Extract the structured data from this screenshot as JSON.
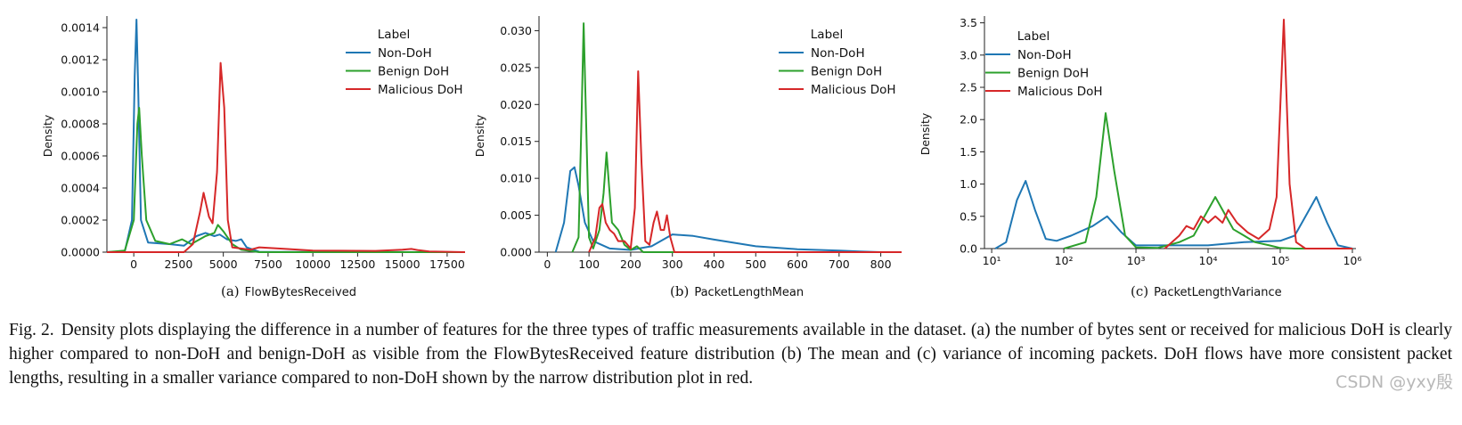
{
  "figure": {
    "caption_lead": "Fig. 2.",
    "caption_text": "Density plots displaying the difference in a number of features for the three types of traffic measurements available in the dataset. (a) the number of bytes sent or received for malicious DoH is clearly higher compared to non-DoH and benign-DoH as visible from the FlowBytesReceived feature distribution (b) The mean and (c) variance of incoming packets. DoH flows have more consistent packet lengths, resulting in a smaller variance compared to non-DoH shown by the narrow distribution plot in red.",
    "watermark": "CSDN @yxy殷"
  },
  "colors": {
    "non_doh": "#1f77b4",
    "benign_doh": "#2ca02c",
    "malicious_doh": "#d62728"
  },
  "chart_data": [
    {
      "type": "line",
      "panel": "(a)",
      "xlabel": "FlowBytesReceived",
      "ylabel": "Density",
      "xscale": "linear",
      "xlim": [
        -1500,
        18500
      ],
      "ylim": [
        0,
        0.00145
      ],
      "xticks": [
        0,
        2500,
        5000,
        7500,
        10000,
        12500,
        15000,
        17500
      ],
      "xtick_labels": [
        "0",
        "2500",
        "5000",
        "7500",
        "10000",
        "12500",
        "15000",
        "17500"
      ],
      "yticks": [
        0,
        0.0002,
        0.0004,
        0.0006,
        0.0008,
        0.001,
        0.0012,
        0.0014
      ],
      "ytick_labels": [
        "0.0000",
        "0.0002",
        "0.0004",
        "0.0006",
        "0.0008",
        "0.0010",
        "0.0012",
        "0.0014"
      ],
      "legend": {
        "title": "Label",
        "entries": [
          "Non-DoH",
          "Benign DoH",
          "Malicious DoH"
        ],
        "placement": "top-right"
      },
      "series": [
        {
          "name": "Non-DoH",
          "color_key": "non_doh",
          "points": [
            [
              -1500,
              0
            ],
            [
              -500,
              5e-06
            ],
            [
              -100,
              0.0002
            ],
            [
              50,
              0.0011
            ],
            [
              150,
              0.00145
            ],
            [
              250,
              0.001
            ],
            [
              400,
              0.0002
            ],
            [
              800,
              6e-05
            ],
            [
              2000,
              5e-05
            ],
            [
              2800,
              4e-05
            ],
            [
              3500,
              0.0001
            ],
            [
              4000,
              0.00012
            ],
            [
              4500,
              0.0001
            ],
            [
              4800,
              0.00011
            ],
            [
              5200,
              8e-05
            ],
            [
              5700,
              7e-05
            ],
            [
              6000,
              8e-05
            ],
            [
              6300,
              3e-05
            ],
            [
              7000,
              2e-06
            ],
            [
              18500,
              0
            ]
          ]
        },
        {
          "name": "Benign DoH",
          "color_key": "benign_doh",
          "points": [
            [
              -1500,
              0
            ],
            [
              -500,
              1e-05
            ],
            [
              0,
              0.0002
            ],
            [
              200,
              0.0008
            ],
            [
              300,
              0.0009
            ],
            [
              450,
              0.0006
            ],
            [
              700,
              0.0002
            ],
            [
              1200,
              7e-05
            ],
            [
              2000,
              5e-05
            ],
            [
              2700,
              8e-05
            ],
            [
              3200,
              5e-05
            ],
            [
              4000,
              0.0001
            ],
            [
              4500,
              0.00012
            ],
            [
              4700,
              0.00017
            ],
            [
              5000,
              0.00013
            ],
            [
              5500,
              5e-05
            ],
            [
              6000,
              1.5e-05
            ],
            [
              7000,
              0
            ],
            [
              18500,
              0
            ]
          ]
        },
        {
          "name": "Malicious DoH",
          "color_key": "malicious_doh",
          "points": [
            [
              -1500,
              0
            ],
            [
              2800,
              0
            ],
            [
              3300,
              5e-05
            ],
            [
              3700,
              0.00025
            ],
            [
              3900,
              0.00037
            ],
            [
              4200,
              0.00022
            ],
            [
              4400,
              0.00018
            ],
            [
              4650,
              0.0005
            ],
            [
              4850,
              0.00118
            ],
            [
              5050,
              0.0009
            ],
            [
              5250,
              0.0002
            ],
            [
              5500,
              3e-05
            ],
            [
              6500,
              1.5e-05
            ],
            [
              7000,
              3e-05
            ],
            [
              8500,
              2e-05
            ],
            [
              10000,
              1e-05
            ],
            [
              13500,
              8e-06
            ],
            [
              15000,
              1.5e-05
            ],
            [
              15500,
              2e-05
            ],
            [
              15900,
              1.2e-05
            ],
            [
              16500,
              4e-06
            ],
            [
              18500,
              0
            ]
          ]
        }
      ]
    },
    {
      "type": "line",
      "panel": "(b)",
      "xlabel": "PacketLengthMean",
      "ylabel": "Density",
      "xscale": "linear",
      "xlim": [
        -20,
        850
      ],
      "ylim": [
        0,
        0.0315
      ],
      "xticks": [
        0,
        100,
        200,
        300,
        400,
        500,
        600,
        700,
        800
      ],
      "xtick_labels": [
        "0",
        "100",
        "200",
        "300",
        "400",
        "500",
        "600",
        "700",
        "800"
      ],
      "yticks": [
        0,
        0.005,
        0.01,
        0.015,
        0.02,
        0.025,
        0.03
      ],
      "ytick_labels": [
        "0.000",
        "0.005",
        "0.010",
        "0.015",
        "0.020",
        "0.025",
        "0.030"
      ],
      "legend": {
        "title": "Label",
        "entries": [
          "Non-DoH",
          "Benign DoH",
          "Malicious DoH"
        ],
        "placement": "top-right"
      },
      "series": [
        {
          "name": "Non-DoH",
          "color_key": "non_doh",
          "points": [
            [
              20,
              0
            ],
            [
              40,
              0.004
            ],
            [
              55,
              0.011
            ],
            [
              65,
              0.0115
            ],
            [
              75,
              0.009
            ],
            [
              90,
              0.004
            ],
            [
              110,
              0.0015
            ],
            [
              150,
              0.0005
            ],
            [
              200,
              0.0003
            ],
            [
              250,
              0.0008
            ],
            [
              300,
              0.0024
            ],
            [
              350,
              0.0022
            ],
            [
              400,
              0.0017
            ],
            [
              500,
              0.0008
            ],
            [
              600,
              0.0004
            ],
            [
              700,
              0.0002
            ],
            [
              750,
              0.0001
            ],
            [
              800,
              0
            ]
          ]
        },
        {
          "name": "Benign DoH",
          "color_key": "benign_doh",
          "points": [
            [
              60,
              0
            ],
            [
              75,
              0.002
            ],
            [
              82,
              0.018
            ],
            [
              87,
              0.031
            ],
            [
              92,
              0.02
            ],
            [
              100,
              0.002
            ],
            [
              110,
              0.0005
            ],
            [
              125,
              0.003
            ],
            [
              135,
              0.008
            ],
            [
              142,
              0.0135
            ],
            [
              148,
              0.009
            ],
            [
              155,
              0.004
            ],
            [
              170,
              0.003
            ],
            [
              185,
              0.001
            ],
            [
              200,
              0.0003
            ],
            [
              215,
              0.0008
            ],
            [
              230,
              0
            ],
            [
              850,
              0
            ]
          ]
        },
        {
          "name": "Malicious DoH",
          "color_key": "malicious_doh",
          "points": [
            [
              100,
              0
            ],
            [
              115,
              0.002
            ],
            [
              125,
              0.006
            ],
            [
              132,
              0.0065
            ],
            [
              140,
              0.004
            ],
            [
              150,
              0.003
            ],
            [
              160,
              0.0025
            ],
            [
              170,
              0.0015
            ],
            [
              185,
              0.0015
            ],
            [
              200,
              0.0005
            ],
            [
              210,
              0.006
            ],
            [
              218,
              0.0245
            ],
            [
              226,
              0.012
            ],
            [
              235,
              0.0015
            ],
            [
              245,
              0.001
            ],
            [
              255,
              0.004
            ],
            [
              263,
              0.0055
            ],
            [
              272,
              0.003
            ],
            [
              280,
              0.003
            ],
            [
              287,
              0.005
            ],
            [
              295,
              0.002
            ],
            [
              305,
              0
            ],
            [
              850,
              0
            ]
          ]
        }
      ]
    },
    {
      "type": "line",
      "panel": "(c)",
      "xlabel": "PacketLengthVariance",
      "ylabel": "Density",
      "xscale": "log10",
      "xlim": [
        0.9,
        6.05
      ],
      "ylim": [
        0,
        3.55
      ],
      "xticks": [
        1,
        2,
        3,
        4,
        5,
        6
      ],
      "xtick_labels": [
        "10¹",
        "10²",
        "10³",
        "10⁴",
        "10⁵",
        "10⁶"
      ],
      "yticks": [
        0,
        0.5,
        1,
        1.5,
        2,
        2.5,
        3,
        3.5
      ],
      "ytick_labels": [
        "0.0",
        "0.5",
        "1.0",
        "1.5",
        "2.0",
        "2.5",
        "3.0",
        "3.5"
      ],
      "legend": {
        "title": "Label",
        "entries": [
          "Non-DoH",
          "Benign DoH",
          "Malicious DoH"
        ],
        "placement": "top-left"
      },
      "series": [
        {
          "name": "Non-DoH",
          "color_key": "non_doh",
          "points": [
            [
              1.05,
              0
            ],
            [
              1.2,
              0.1
            ],
            [
              1.35,
              0.75
            ],
            [
              1.47,
              1.05
            ],
            [
              1.6,
              0.6
            ],
            [
              1.75,
              0.15
            ],
            [
              1.9,
              0.12
            ],
            [
              2.1,
              0.2
            ],
            [
              2.4,
              0.35
            ],
            [
              2.6,
              0.5
            ],
            [
              2.8,
              0.25
            ],
            [
              3.0,
              0.05
            ],
            [
              3.5,
              0.05
            ],
            [
              4.0,
              0.05
            ],
            [
              4.5,
              0.1
            ],
            [
              5.0,
              0.12
            ],
            [
              5.2,
              0.2
            ],
            [
              5.4,
              0.6
            ],
            [
              5.5,
              0.8
            ],
            [
              5.65,
              0.4
            ],
            [
              5.8,
              0.05
            ],
            [
              6.0,
              0
            ]
          ]
        },
        {
          "name": "Benign DoH",
          "color_key": "benign_doh",
          "points": [
            [
              2.0,
              0
            ],
            [
              2.3,
              0.1
            ],
            [
              2.45,
              0.8
            ],
            [
              2.58,
              2.1
            ],
            [
              2.7,
              1.2
            ],
            [
              2.85,
              0.2
            ],
            [
              3.0,
              0.02
            ],
            [
              3.3,
              0.01
            ],
            [
              3.6,
              0.1
            ],
            [
              3.8,
              0.2
            ],
            [
              3.95,
              0.5
            ],
            [
              4.1,
              0.8
            ],
            [
              4.2,
              0.6
            ],
            [
              4.35,
              0.3
            ],
            [
              4.5,
              0.2
            ],
            [
              4.65,
              0.1
            ],
            [
              4.85,
              0.05
            ],
            [
              5.0,
              0.01
            ],
            [
              5.2,
              0
            ],
            [
              6.0,
              0
            ]
          ]
        },
        {
          "name": "Malicious DoH",
          "color_key": "malicious_doh",
          "points": [
            [
              3.4,
              0
            ],
            [
              3.6,
              0.2
            ],
            [
              3.7,
              0.35
            ],
            [
              3.8,
              0.3
            ],
            [
              3.9,
              0.5
            ],
            [
              4.0,
              0.4
            ],
            [
              4.1,
              0.5
            ],
            [
              4.2,
              0.4
            ],
            [
              4.28,
              0.6
            ],
            [
              4.4,
              0.4
            ],
            [
              4.55,
              0.25
            ],
            [
              4.7,
              0.15
            ],
            [
              4.85,
              0.3
            ],
            [
              4.95,
              0.8
            ],
            [
              5.05,
              3.55
            ],
            [
              5.13,
              1.0
            ],
            [
              5.22,
              0.1
            ],
            [
              5.35,
              0
            ],
            [
              6.0,
              0
            ]
          ]
        }
      ]
    }
  ]
}
